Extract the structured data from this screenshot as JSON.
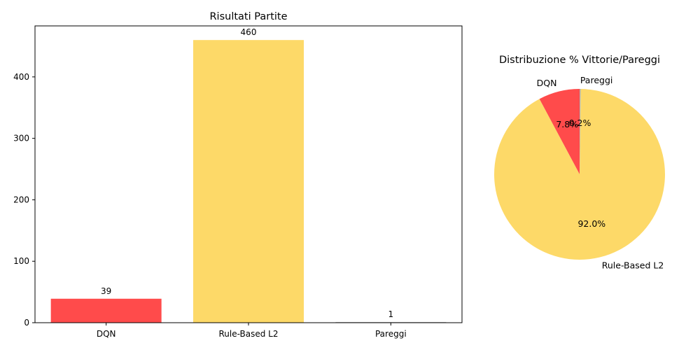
{
  "chart_data": [
    {
      "type": "bar",
      "title": "Risultati Partite",
      "xlabel": "",
      "ylabel": "",
      "categories": [
        "DQN",
        "Rule-Based L2",
        "Pareggi"
      ],
      "values": [
        39,
        460,
        1
      ],
      "data_labels": [
        "39",
        "460",
        "1"
      ],
      "colors": [
        "#ff4b4b",
        "#fdd968",
        "#b0b0b0"
      ],
      "ylim": [
        0,
        483
      ],
      "yticks": [
        0,
        100,
        200,
        300,
        400
      ],
      "grid": false
    },
    {
      "type": "pie",
      "title": "Distribuzione % Vittorie/Pareggi",
      "labels": [
        "DQN",
        "Rule-Based L2",
        "Pareggi"
      ],
      "values": [
        39,
        460,
        1
      ],
      "percent_labels": [
        "7.8%",
        "92.0%",
        "0.2%"
      ],
      "colors": [
        "#ff4b4b",
        "#fdd968",
        "#b0b0b0"
      ],
      "start_angle_deg": 90,
      "direction": "counterclockwise"
    }
  ]
}
